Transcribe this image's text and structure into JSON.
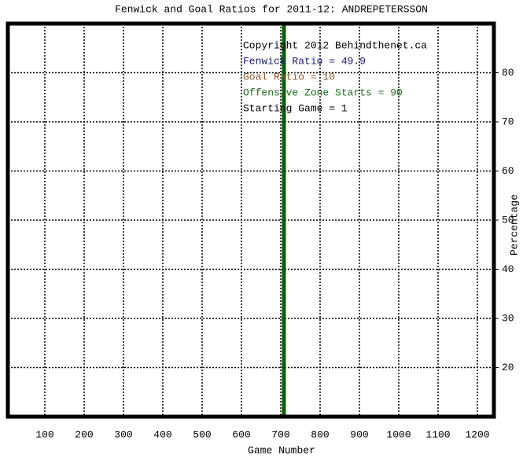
{
  "chart_data": {
    "type": "line",
    "title": "Fenwick and Goal Ratios for 2011-12: ANDREPETERSSON",
    "xlabel": "Game Number",
    "ylabel": "Percentage",
    "xlim": [
      6,
      1242
    ],
    "ylim": [
      10,
      90
    ],
    "xticks": [
      100,
      200,
      300,
      400,
      500,
      600,
      700,
      800,
      900,
      1000,
      1100,
      1200
    ],
    "yticks": [
      20,
      30,
      40,
      50,
      60,
      70,
      80
    ],
    "grid": true,
    "reference_lines": [
      {
        "x": 708,
        "color": "#0b5e0b"
      }
    ],
    "annotations": [
      {
        "text": "Copyright 2012 Behindthenet.ca",
        "color": "#000000"
      },
      {
        "text": "Fenwick Ratio = 49.9",
        "color": "#1a1a6e"
      },
      {
        "text": "Goal Ratio = 10",
        "color": "#8b5a2b"
      },
      {
        "text": "Offensive Zone Starts = 90",
        "color": "#1f6b1f"
      },
      {
        "text": "Starting Game = 1",
        "color": "#000000"
      }
    ]
  }
}
